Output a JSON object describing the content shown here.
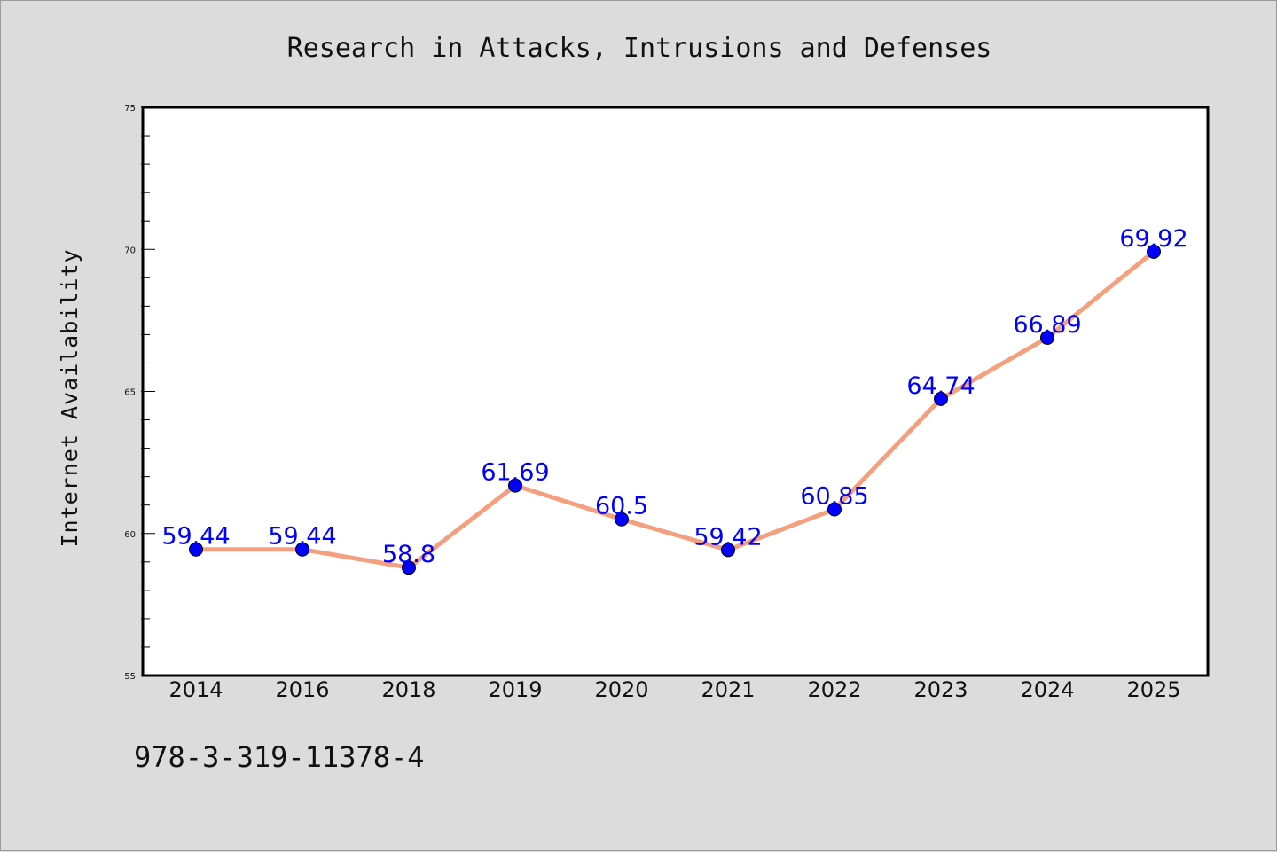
{
  "chart_data": {
    "type": "line",
    "title": "Research in Attacks, Intrusions and Defenses",
    "xlabel": "",
    "ylabel": "Internet Availability",
    "categories": [
      "2014",
      "2016",
      "2018",
      "2019",
      "2020",
      "2021",
      "2022",
      "2023",
      "2024",
      "2025"
    ],
    "series": [
      {
        "values": [
          59.44,
          59.44,
          58.8,
          61.69,
          60.5,
          59.42,
          60.85,
          64.74,
          66.89,
          69.92
        ],
        "labels": [
          "59.44",
          "59.44",
          "58.8",
          "61.69",
          "60.5",
          "59.42",
          "60.85",
          "64.74",
          "66.89",
          "69.92"
        ],
        "line_color": "#f4a07e",
        "marker_color": "#0000ff",
        "label_color": "#0000ff"
      }
    ],
    "ylim": [
      55,
      75
    ],
    "yticks": [
      "55",
      "60",
      "65",
      "70",
      "75"
    ],
    "grid": false,
    "legend": "none"
  },
  "footer": {
    "isbn": "978-3-319-11378-4"
  },
  "colors": {
    "page_background": "#dcdcdc",
    "plot_background": "#ffffff",
    "axis": "#000000"
  }
}
